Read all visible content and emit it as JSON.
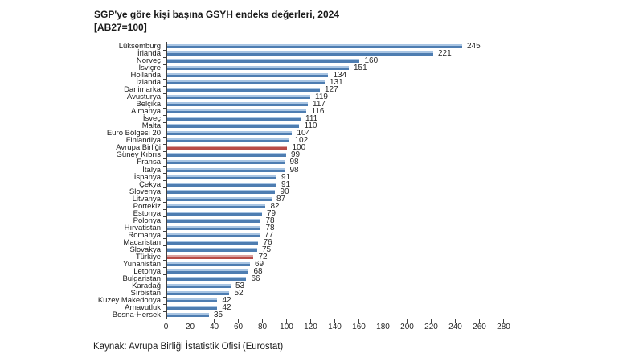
{
  "header": {
    "title": "SGP'ye göre kişi başına GSYH endeks değerleri, 2024",
    "subtitle": "[AB27=100]"
  },
  "chart_data": {
    "type": "bar",
    "orientation": "horizontal",
    "title": "SGP'ye göre kişi başına GSYH endeks değerleri, 2024",
    "subtitle": "[AB27=100]",
    "source": "Kaynak: Avrupa Birliği İstatistik Ofisi (Eurostat)",
    "categories": [
      "Lüksemburg",
      "İrlanda",
      "Norveç",
      "İsviçre",
      "Hollanda",
      "İzlanda",
      "Danimarka",
      "Avusturya",
      "Belçika",
      "Almanya",
      "İsveç",
      "Malta",
      "Euro Bölgesi 20",
      "Finlandiya",
      "Avrupa Birliği",
      "Güney Kıbrıs",
      "Fransa",
      "İtalya",
      "İspanya",
      "Çekya",
      "Slovenya",
      "Litvanya",
      "Portekiz",
      "Estonya",
      "Polonya",
      "Hırvatistan",
      "Romanya",
      "Macaristan",
      "Slovakya",
      "Türkiye",
      "Yunanistan",
      "Letonya",
      "Bulgaristan",
      "Karadağ",
      "Sırbistan",
      "Kuzey Makedonya",
      "Arnavutluk",
      "Bosna-Hersek"
    ],
    "values": [
      245,
      221,
      160,
      151,
      134,
      131,
      127,
      119,
      117,
      116,
      111,
      110,
      104,
      102,
      100,
      99,
      98,
      98,
      91,
      91,
      90,
      87,
      82,
      79,
      78,
      78,
      77,
      76,
      75,
      72,
      69,
      68,
      66,
      53,
      52,
      42,
      42,
      35
    ],
    "highlighted_categories": [
      "Avrupa Birliği",
      "Türkiye"
    ],
    "xlim": [
      0,
      280
    ],
    "x_ticks": [
      0,
      20,
      40,
      60,
      80,
      100,
      120,
      140,
      160,
      180,
      200,
      220,
      240,
      260,
      280
    ],
    "grid": "off",
    "legend": "none",
    "bar_color": "#4E7DB1",
    "bar_color_light": "#A9C5E3",
    "highlight_color": "#B84B47",
    "highlight_color_light": "#D9A19E",
    "axis_color": "#404040",
    "text_color": "#1a1a1a"
  }
}
